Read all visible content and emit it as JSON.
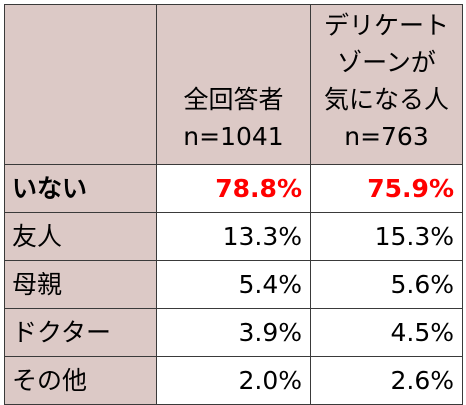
{
  "header": {
    "corner": "",
    "col_all": {
      "line1": "全回答者",
      "line2": "n=1041"
    },
    "col_concerned": {
      "line1": "デリケート",
      "line2": "ゾーンが",
      "line3": "気になる人",
      "line4": "n=763"
    }
  },
  "rows": [
    {
      "label": "いない",
      "all": "78.8%",
      "concerned": "75.9%",
      "highlight": true
    },
    {
      "label": "友人",
      "all": "13.3%",
      "concerned": "15.3%"
    },
    {
      "label": "母親",
      "all": "5.4%",
      "concerned": "5.6%"
    },
    {
      "label": "ドクター",
      "all": "3.9%",
      "concerned": "4.5%"
    },
    {
      "label": "その他",
      "all": "2.0%",
      "concerned": "2.6%"
    }
  ],
  "colors": {
    "header_bg": "#dcc9c6",
    "highlight_text": "#ff0000",
    "border": "#3a3a3a"
  }
}
